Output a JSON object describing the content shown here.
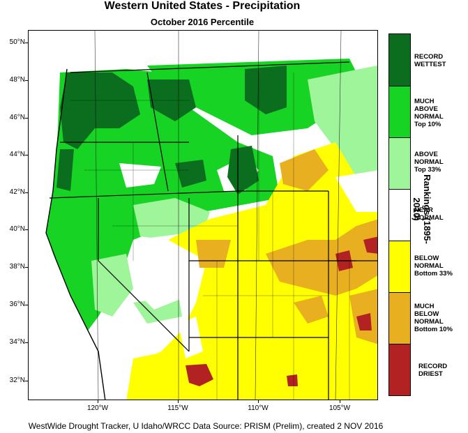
{
  "title": "Western United States - Precipitation",
  "subtitle": "October 2016 Percentile",
  "legend_title": "Rankings (1895-2010)",
  "credit": "WestWide Drought Tracker, U Idaho/WRCC Data Source: PRISM (Prelim), created  2 NOV 2016",
  "lat_labels": [
    "50°N",
    "48°N",
    "46°N",
    "44°N",
    "42°N",
    "40°N",
    "38°N",
    "36°N",
    "34°N",
    "32°N"
  ],
  "lon_labels": [
    "120°W",
    "115°W",
    "110°W",
    "105°W"
  ],
  "legend": [
    {
      "line1": "RECORD",
      "line2": "WETTEST",
      "line3": "",
      "line4": "",
      "color": "#0a6e1e"
    },
    {
      "line1": "MUCH",
      "line2": "ABOVE",
      "line3": "NORMAL",
      "line4": "Top 10%",
      "color": "#17d424"
    },
    {
      "line1": "ABOVE",
      "line2": "NORMAL",
      "line3": "Top 33%",
      "line4": "",
      "color": "#9ef59a"
    },
    {
      "line1": "NEAR",
      "line2": "NORMAL",
      "line3": "",
      "line4": "",
      "color": "#ffffff"
    },
    {
      "line1": "BELOW",
      "line2": "NORMAL",
      "line3": "Bottom 33%",
      "line4": "",
      "color": "#ffff00"
    },
    {
      "line1": "MUCH",
      "line2": "BELOW",
      "line3": "NORMAL",
      "line4": "Bottom 10%",
      "color": "#e8b020"
    },
    {
      "line1": "RECORD",
      "line2": "DRIEST",
      "line3": "",
      "line4": "",
      "color": "#b22222"
    }
  ],
  "colors": {
    "record_wettest": "#0a6e1e",
    "much_above": "#17d424",
    "above": "#9ef59a",
    "near": "#ffffff",
    "below": "#ffff00",
    "much_below": "#e8b020",
    "record_driest": "#b22222"
  }
}
